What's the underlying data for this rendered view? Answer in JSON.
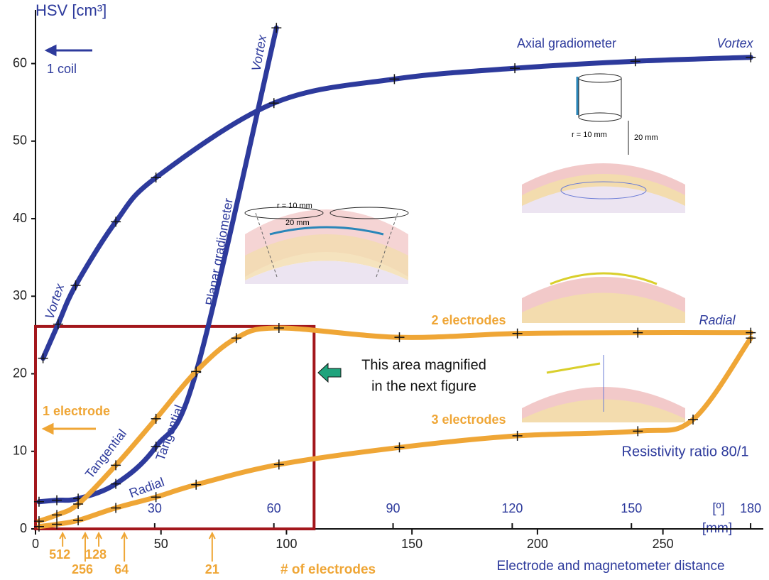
{
  "chart_data": {
    "type": "line",
    "y_label": "HSV [cm³]",
    "x_label": "Electrode and magnetometer distance",
    "x_unit": "[mm]",
    "x2_unit": "[º]",
    "xlim": [
      0,
      290
    ],
    "xticks": [
      0,
      50,
      100,
      150,
      200,
      250
    ],
    "x2lim": [
      0,
      183.2
    ],
    "x2ticks": [
      30,
      60,
      90,
      120,
      150,
      180
    ],
    "ylim": [
      0,
      66
    ],
    "yticks": [
      0,
      10,
      20,
      30,
      40,
      50,
      60
    ],
    "series": [
      {
        "name": "Axial gradiometer",
        "color": "#2d3a9c",
        "x": [
          3,
          9,
          16,
          32,
          48,
          95,
          143,
          191,
          239,
          285
        ],
        "values": [
          22,
          26.4,
          31.4,
          39.6,
          45.3,
          54.9,
          58,
          59.4,
          60.3,
          60.8
        ]
      },
      {
        "name": "Planar gradiometer",
        "color": "#2d3a9c",
        "x": [
          1.4,
          8.5,
          17,
          32,
          48,
          64,
          96
        ],
        "values": [
          3.5,
          3.7,
          3.9,
          5.8,
          10.6,
          20.2,
          64.6
        ]
      },
      {
        "name": "2 electrodes",
        "color": "#efa636",
        "x": [
          1.4,
          8.5,
          17,
          32,
          48,
          64,
          80,
          97,
          145,
          192,
          240,
          285
        ],
        "values": [
          1,
          1.8,
          3.2,
          8.2,
          14.2,
          20.3,
          24.6,
          25.9,
          24.7,
          25.2,
          25.3,
          25.3
        ]
      },
      {
        "name": "3 electrodes",
        "color": "#efa636",
        "x": [
          1.4,
          8.5,
          17,
          32,
          48,
          64,
          97,
          145,
          192,
          240,
          262,
          285
        ],
        "values": [
          0.3,
          0.6,
          1.1,
          2.7,
          4.1,
          5.7,
          8.3,
          10.5,
          12,
          12.6,
          14.1,
          24.6
        ]
      }
    ],
    "electrode_count_label": "# of electrodes",
    "electrode_ticks": [
      {
        "value": 10.8,
        "label": "512"
      },
      {
        "value": 19.8,
        "label": "256"
      },
      {
        "value": 25.2,
        "label": "128"
      },
      {
        "value": 35.4,
        "label": "64"
      },
      {
        "value": 70.4,
        "label": "21"
      }
    ],
    "magnified_region": {
      "xlim": [
        0,
        111
      ],
      "ylim": [
        0,
        26.1
      ]
    },
    "annotations": [
      "Vortex",
      "Vortex",
      "Vortex",
      "Tangential",
      "Tangential",
      "Radial",
      "Radial",
      "1 electrode",
      "1 coil",
      "Resistivity ratio 80/1",
      "This area magnified",
      "in the next figure"
    ],
    "insets": [
      {
        "r_label": "r = 10 mm",
        "distance_label": "20 mm"
      },
      {
        "r_label": "r = 10 mm",
        "distance_label": "20 mm"
      }
    ]
  }
}
